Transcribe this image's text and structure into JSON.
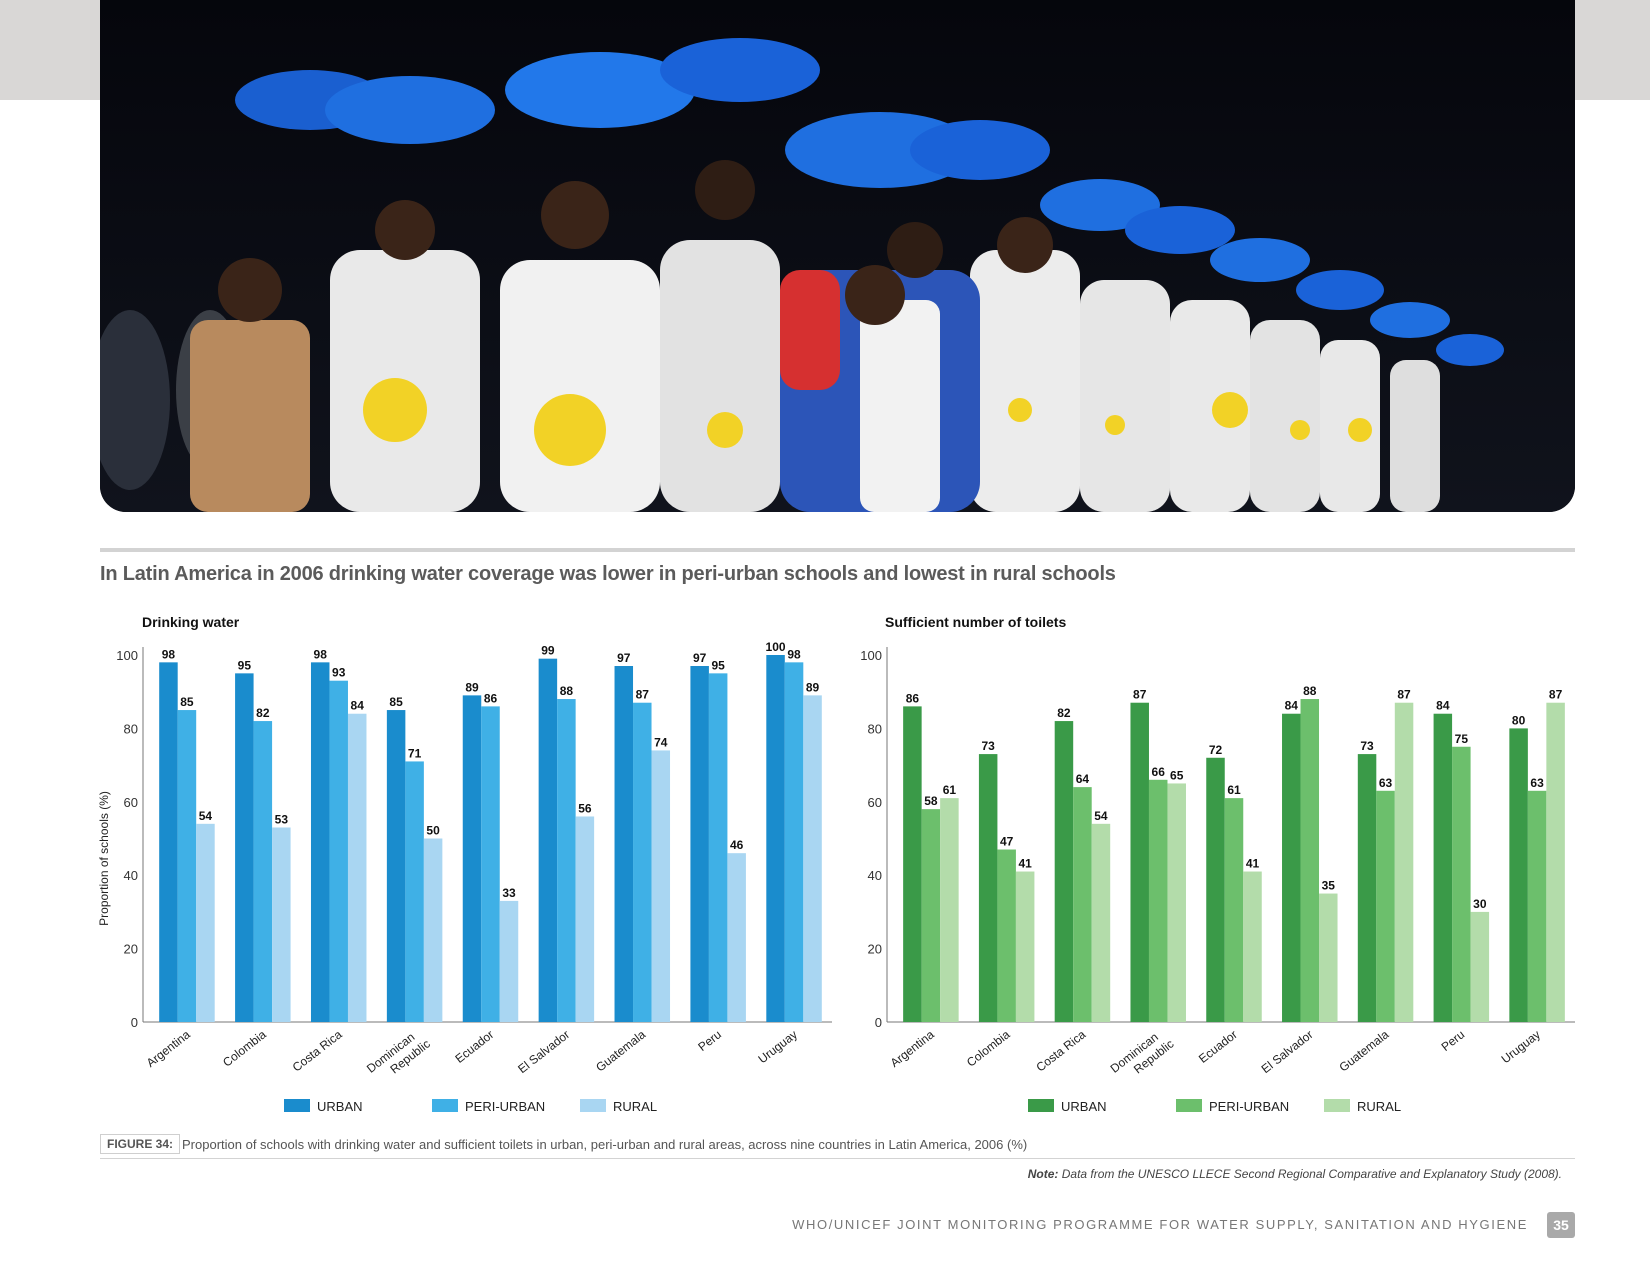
{
  "photo": {
    "description_name": "children-carrying-blue-buckets-photo"
  },
  "headline": "In Latin America in 2006 drinking water coverage was lower in peri-urban schools and lowest in rural schools",
  "chart_data": [
    {
      "type": "bar",
      "title": "Drinking water",
      "ylabel": "Proportion of schools (%)",
      "ylim": [
        0,
        100
      ],
      "yticks": [
        "0",
        "20",
        "40",
        "60",
        "80",
        "100"
      ],
      "categories": [
        "Argentina",
        "Colombia",
        "Costa Rica",
        "Dominican Republic",
        "Ecuador",
        "El Salvador",
        "Guatemala",
        "Peru",
        "Uruguay"
      ],
      "series": [
        {
          "name": "URBAN",
          "color": "#1a8ccd",
          "values": [
            98,
            95,
            98,
            85,
            89,
            99,
            97,
            97,
            100
          ]
        },
        {
          "name": "PERI-URBAN",
          "color": "#3fb0e6",
          "values": [
            85,
            82,
            93,
            71,
            86,
            88,
            87,
            95,
            98
          ]
        },
        {
          "name": "RURAL",
          "color": "#a9d6f2",
          "values": [
            54,
            53,
            84,
            50,
            33,
            56,
            74,
            46,
            89
          ]
        }
      ],
      "legend": "bottom"
    },
    {
      "type": "bar",
      "title": "Sufficient number of toilets",
      "ylabel": "",
      "ylim": [
        0,
        100
      ],
      "yticks": [
        "0",
        "20",
        "40",
        "60",
        "80",
        "100"
      ],
      "categories": [
        "Argentina",
        "Colombia",
        "Costa Rica",
        "Dominican Republic",
        "Ecuador",
        "El Salvador",
        "Guatemala",
        "Peru",
        "Uruguay"
      ],
      "series": [
        {
          "name": "URBAN",
          "color": "#3a9a48",
          "values": [
            86,
            73,
            82,
            87,
            72,
            84,
            73,
            84,
            80
          ]
        },
        {
          "name": "PERI-URBAN",
          "color": "#6cbf6c",
          "values": [
            58,
            47,
            64,
            66,
            61,
            88,
            63,
            75,
            63
          ]
        },
        {
          "name": "RURAL",
          "color": "#b3dcaa",
          "values": [
            61,
            41,
            54,
            65,
            41,
            35,
            87,
            30,
            87
          ]
        }
      ],
      "legend": "bottom"
    }
  ],
  "caption": {
    "label": "FIGURE 34:",
    "text": "Proportion of schools with drinking water and sufficient toilets in urban, peri-urban and rural areas, across nine countries in Latin America, 2006 (%)"
  },
  "note": {
    "label": "Note:",
    "text": "Data from the UNESCO LLECE Second Regional Comparative and Explanatory Study (2008)."
  },
  "footer": {
    "text": "WHO/UNICEF JOINT MONITORING PROGRAMME FOR WATER SUPPLY, SANITATION AND HYGIENE",
    "page": "35"
  }
}
